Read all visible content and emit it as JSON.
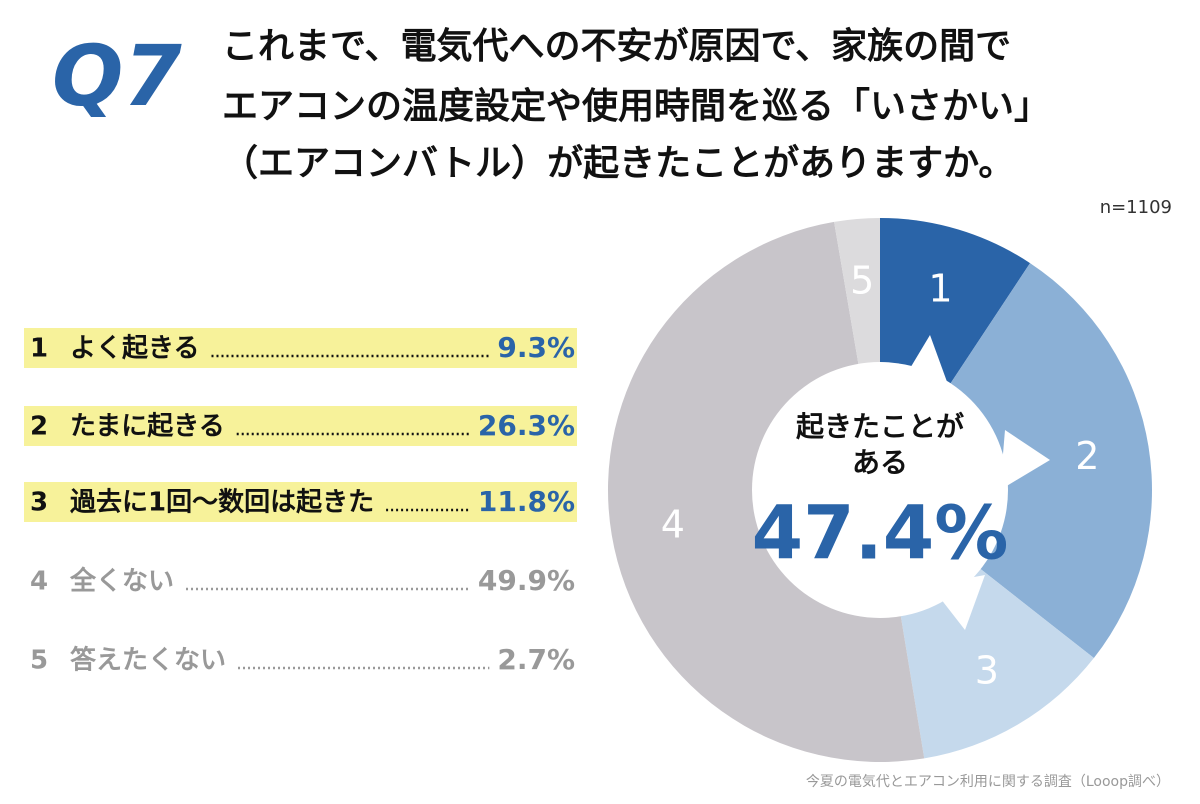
{
  "chart_data": {
    "type": "donut",
    "question": "Q7",
    "title_lines": [
      "これまで、電気代への不安が原因で、家族の間で",
      "エアコンの温度設定や使用時間を巡る「いさかい」",
      "（エアコンバトル）が起きたことがありますか。"
    ],
    "sample_size": "n=1109",
    "category_numbers": [
      "1",
      "2",
      "3",
      "4",
      "5"
    ],
    "categories": [
      "よく起きる",
      "たまに起きる",
      "過去に1回〜数回は起きた",
      "全くない",
      "答えたくない"
    ],
    "values": [
      9.3,
      26.3,
      11.8,
      49.9,
      2.7
    ],
    "value_labels": [
      "9.3%",
      "26.3%",
      "11.8%",
      "49.9%",
      "2.7%"
    ],
    "colors": [
      "#2a64a8",
      "#8bb0d6",
      "#c5d9ec",
      "#c8c5ca",
      "#dcdbdd"
    ],
    "highlighted": [
      true,
      true,
      true,
      false,
      false
    ],
    "center_text": [
      "起きたことが",
      "ある"
    ],
    "center_value_label": "47.4%",
    "source": "今夏の電気代とエアコン利用に関する調査（Looop調べ）"
  }
}
